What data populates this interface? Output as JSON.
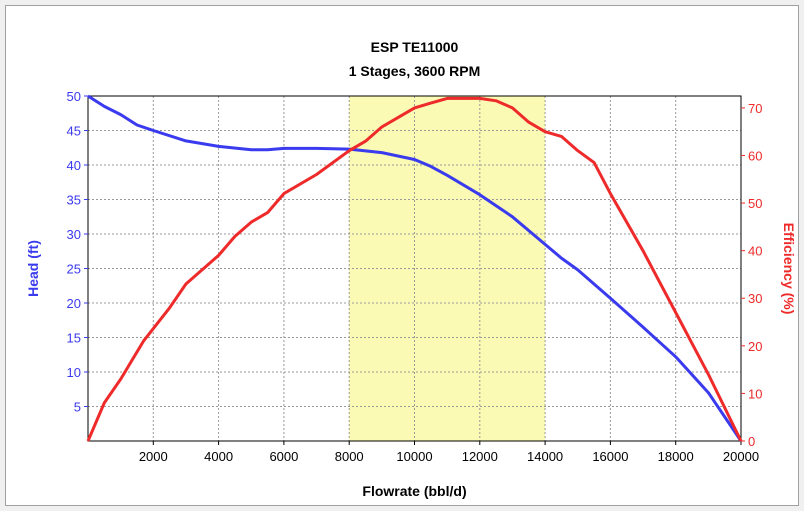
{
  "chart_data": {
    "type": "line",
    "title": "ESP TE11000",
    "subtitle": "1 Stages, 3600 RPM",
    "xlabel": "Flowrate (bbl/d)",
    "ylabel_left": "Head (ft)",
    "ylabel_right": "Efficiency (%)",
    "xlim": [
      0,
      20000
    ],
    "ylim_left": [
      0,
      50
    ],
    "ylim_right": [
      0,
      72.5
    ],
    "x_ticks": [
      2000,
      4000,
      6000,
      8000,
      10000,
      12000,
      14000,
      16000,
      18000,
      20000
    ],
    "x_tick_labels": [
      "2000",
      "4000",
      "6000",
      "8000",
      "10000",
      "12000",
      "14000",
      "16000",
      "18000",
      "20000"
    ],
    "y_left_ticks": [
      5,
      10,
      15,
      20,
      25,
      30,
      35,
      40,
      45,
      50
    ],
    "y_left_tick_labels": [
      "5",
      "10",
      "15",
      "20",
      "25",
      "30",
      "35",
      "40",
      "45",
      "50"
    ],
    "y_right_ticks": [
      0,
      10,
      20,
      30,
      40,
      50,
      60,
      70
    ],
    "y_right_tick_labels": [
      "0",
      "10",
      "20",
      "30",
      "40",
      "50",
      "60",
      "70"
    ],
    "grid": true,
    "operating_range": {
      "x_start": 8000,
      "x_end": 14000,
      "color": "#fafab4"
    },
    "series": [
      {
        "axis": "left",
        "color": "#3a3aee",
        "x": [
          0,
          500,
          1000,
          1500,
          2000,
          3000,
          4000,
          5000,
          5500,
          6000,
          7000,
          8000,
          9000,
          10000,
          10500,
          11000,
          12000,
          13000,
          14000,
          14500,
          15000,
          16000,
          17000,
          18000,
          19000,
          20000
        ],
        "y": [
          50.0,
          48.5,
          47.3,
          45.8,
          45.0,
          43.5,
          42.7,
          42.2,
          42.2,
          42.4,
          42.4,
          42.3,
          41.8,
          40.8,
          39.8,
          38.5,
          35.7,
          32.5,
          28.5,
          26.5,
          24.8,
          20.7,
          16.5,
          12.2,
          7.0,
          0.0
        ]
      },
      {
        "axis": "right",
        "color": "#ee2a2a",
        "x": [
          0,
          500,
          1000,
          1700,
          2500,
          3000,
          4000,
          4500,
          5000,
          5500,
          6000,
          7000,
          8000,
          8500,
          9000,
          9500,
          10000,
          10500,
          11000,
          12000,
          12500,
          13000,
          13500,
          14000,
          14500,
          15000,
          15500,
          16000,
          17000,
          18000,
          19000,
          20000
        ],
        "y": [
          0,
          8,
          13,
          21,
          28,
          33,
          39,
          43,
          46,
          48,
          52,
          56,
          61,
          63,
          66,
          68,
          70,
          71,
          72,
          72,
          71.5,
          70,
          67,
          65,
          64,
          61,
          58.5,
          52,
          40,
          27,
          14,
          0
        ]
      }
    ]
  }
}
